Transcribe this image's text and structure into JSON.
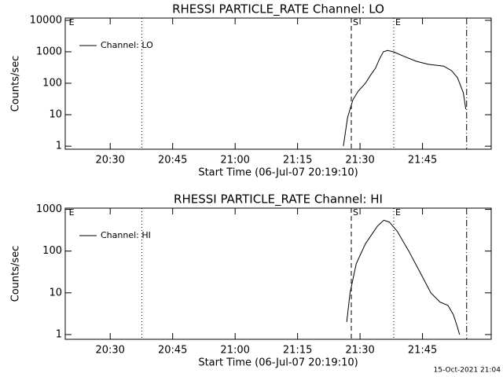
{
  "charts": [
    {
      "type": "line",
      "title": "RHESSI PARTICLE_RATE Channel: LO",
      "ylabel": "Counts/sec",
      "xlabel": "Start Time (06-Jul-07 20:19:10)",
      "log_y": true,
      "xlim": [
        1219.2,
        1321.5
      ],
      "ylim": [
        0.8,
        11800
      ],
      "xticks": [
        {
          "value": 1230,
          "label": "20:30"
        },
        {
          "value": 1245,
          "label": "20:45"
        },
        {
          "value": 1260,
          "label": "21:00"
        },
        {
          "value": 1275,
          "label": "21:15"
        },
        {
          "value": 1290,
          "label": "21:30"
        },
        {
          "value": 1305,
          "label": "21:45"
        }
      ],
      "yticks": [
        1,
        10,
        100,
        1000,
        10000
      ],
      "legend": "top-left",
      "series": [
        {
          "name": "Channel: LO",
          "color": "#000000",
          "x": [
            1286,
            1287,
            1288.3,
            1289.5,
            1291.3,
            1292.5,
            1293.7,
            1294.7,
            1295.6,
            1296.6,
            1298,
            1300.7,
            1303.5,
            1306.4,
            1310.1,
            1312,
            1313.4,
            1314.8,
            1315.4
          ],
          "values": [
            1,
            8,
            30,
            55,
            100,
            180,
            300,
            600,
            1000,
            1100,
            1000,
            700,
            500,
            400,
            350,
            250,
            150,
            50,
            15
          ]
        }
      ],
      "vlines": [
        {
          "x": 1237.6,
          "style": "dotted"
        },
        {
          "x": 1287.9,
          "style": "dashed"
        },
        {
          "x": 1298.1,
          "style": "dotted"
        },
        {
          "x": 1315.6,
          "style": "dashdot"
        }
      ],
      "markers": [
        {
          "x": 1219.7,
          "label": "E"
        },
        {
          "x": 1287.9,
          "label": "S"
        },
        {
          "x": 1298.1,
          "label": "E"
        }
      ]
    },
    {
      "type": "line",
      "title": "RHESSI PARTICLE_RATE Channel: HI",
      "ylabel": "Counts/sec",
      "xlabel": "Start Time (06-Jul-07 20:19:10)",
      "log_y": true,
      "xlim": [
        1219.2,
        1321.5
      ],
      "ylim": [
        0.77,
        1070
      ],
      "xticks": [
        {
          "value": 1230,
          "label": "20:30"
        },
        {
          "value": 1245,
          "label": "20:45"
        },
        {
          "value": 1260,
          "label": "21:00"
        },
        {
          "value": 1275,
          "label": "21:15"
        },
        {
          "value": 1290,
          "label": "21:30"
        },
        {
          "value": 1305,
          "label": "21:45"
        }
      ],
      "yticks": [
        1,
        10,
        100,
        1000
      ],
      "legend": "top-left",
      "series": [
        {
          "name": "Channel: HI",
          "color": "#000000",
          "x": [
            1286.8,
            1287.6,
            1289.1,
            1291.3,
            1294.2,
            1295.7,
            1297,
            1298.9,
            1301.7,
            1304.5,
            1307,
            1309.2,
            1311.1,
            1312.4,
            1313.4,
            1313.9
          ],
          "values": [
            2,
            10,
            50,
            150,
            400,
            550,
            500,
            300,
            100,
            30,
            10,
            6,
            5,
            3,
            1.5,
            1
          ]
        }
      ],
      "vlines": [
        {
          "x": 1237.6,
          "style": "dotted"
        },
        {
          "x": 1287.9,
          "style": "dashed"
        },
        {
          "x": 1298.1,
          "style": "dotted"
        },
        {
          "x": 1315.6,
          "style": "dashdot"
        }
      ],
      "markers": [
        {
          "x": 1219.7,
          "label": "E"
        },
        {
          "x": 1287.9,
          "label": "S"
        },
        {
          "x": 1298.1,
          "label": "E"
        }
      ]
    }
  ],
  "footer": "15-Oct-2021 21:04"
}
